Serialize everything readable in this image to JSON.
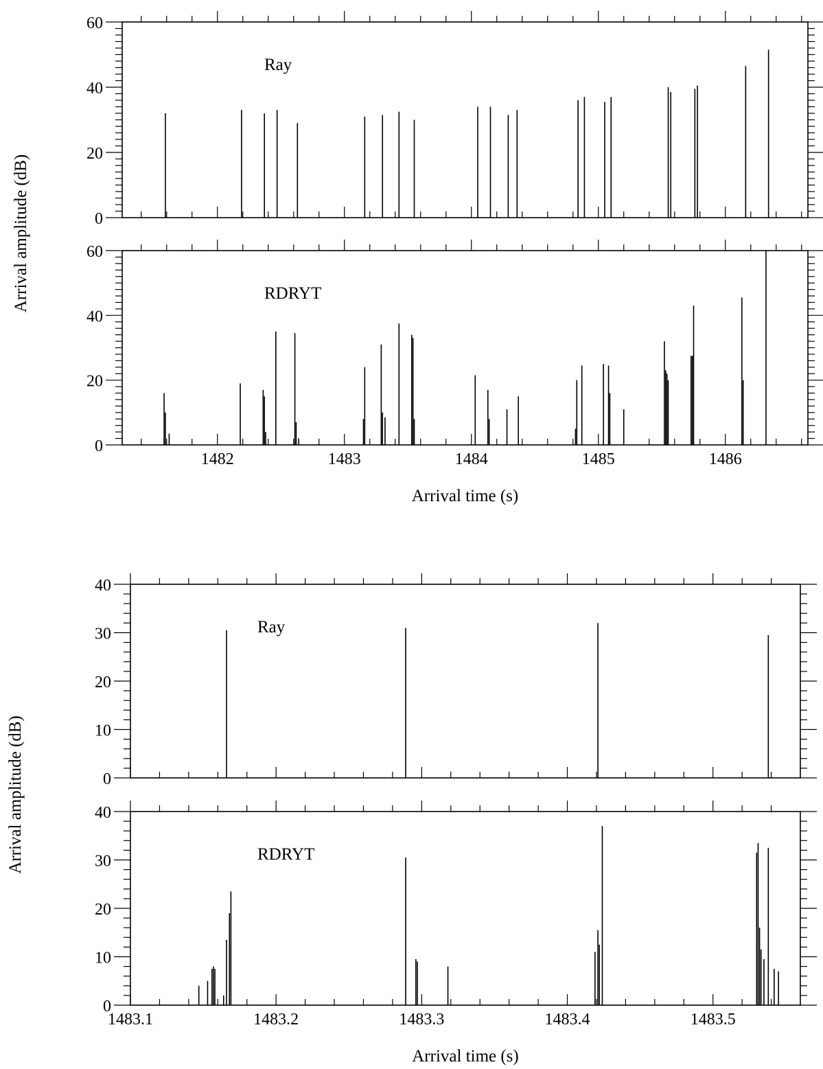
{
  "chart_data": [
    {
      "type": "bar",
      "ylabel": "Arrival amplitude (dB)",
      "xlabel": "Arrival time (s)",
      "xlim": [
        1481.25,
        1486.65
      ],
      "ylim": [
        0,
        60
      ],
      "xticks": [
        "1482",
        "1483",
        "1484",
        "1485",
        "1486"
      ],
      "yticks": [
        "0",
        "20",
        "40",
        "60"
      ],
      "panels": [
        {
          "name": "Ray",
          "arrivals": [
            [
              1481.59,
              32
            ],
            [
              1482.19,
              33
            ],
            [
              1482.37,
              32
            ],
            [
              1482.47,
              33
            ],
            [
              1482.63,
              29
            ],
            [
              1483.16,
              31
            ],
            [
              1483.3,
              31.5
            ],
            [
              1483.43,
              32.5
            ],
            [
              1483.55,
              30
            ],
            [
              1484.05,
              34
            ],
            [
              1484.15,
              34
            ],
            [
              1484.29,
              31.5
            ],
            [
              1484.36,
              33
            ],
            [
              1484.84,
              36
            ],
            [
              1484.89,
              37
            ],
            [
              1485.05,
              35.5
            ],
            [
              1485.1,
              37
            ],
            [
              1485.55,
              40
            ],
            [
              1485.57,
              38.5
            ],
            [
              1485.76,
              39.5
            ],
            [
              1485.78,
              40.5
            ],
            [
              1486.16,
              46.5
            ],
            [
              1486.34,
              51.5
            ]
          ]
        },
        {
          "name": "RDRYT",
          "arrivals": [
            [
              1481.58,
              16
            ],
            [
              1481.59,
              10
            ],
            [
              1481.62,
              3.5
            ],
            [
              1482.18,
              19
            ],
            [
              1482.36,
              17
            ],
            [
              1482.37,
              15
            ],
            [
              1482.38,
              4
            ],
            [
              1482.46,
              35
            ],
            [
              1482.61,
              34.5
            ],
            [
              1482.62,
              7
            ],
            [
              1482.64,
              2
            ],
            [
              1483.15,
              8
            ],
            [
              1483.16,
              24
            ],
            [
              1483.29,
              31
            ],
            [
              1483.3,
              10
            ],
            [
              1483.32,
              8.5
            ],
            [
              1483.43,
              37.5
            ],
            [
              1483.53,
              34
            ],
            [
              1483.54,
              33
            ],
            [
              1483.55,
              8
            ],
            [
              1484.03,
              21.5
            ],
            [
              1484.13,
              17
            ],
            [
              1484.14,
              8
            ],
            [
              1484.28,
              11
            ],
            [
              1484.37,
              15
            ],
            [
              1484.82,
              5
            ],
            [
              1484.83,
              20
            ],
            [
              1484.87,
              24.5
            ],
            [
              1485.04,
              25
            ],
            [
              1485.08,
              24.5
            ],
            [
              1485.09,
              16
            ],
            [
              1485.2,
              11
            ],
            [
              1485.52,
              32
            ],
            [
              1485.53,
              23
            ],
            [
              1485.54,
              22
            ],
            [
              1485.55,
              20
            ],
            [
              1485.73,
              27.5
            ],
            [
              1485.74,
              27.5
            ],
            [
              1485.75,
              43
            ],
            [
              1486.13,
              45.5
            ],
            [
              1486.14,
              20
            ],
            [
              1486.32,
              61
            ]
          ]
        }
      ]
    },
    {
      "type": "bar",
      "ylabel": "Arrival amplitude (dB)",
      "xlabel": "Arrival time (s)",
      "xlim": [
        1483.1,
        1483.56
      ],
      "ylim": [
        0,
        40
      ],
      "xticks": [
        "1483.1",
        "1483.2",
        "1483.3",
        "1483.4",
        "1483.5"
      ],
      "yticks": [
        "0",
        "10",
        "20",
        "30",
        "40"
      ],
      "panels": [
        {
          "name": "Ray",
          "arrivals": [
            [
              1483.166,
              30.5
            ],
            [
              1483.289,
              31
            ],
            [
              1483.421,
              32
            ],
            [
              1483.538,
              29.5
            ]
          ]
        },
        {
          "name": "RDRYT",
          "arrivals": [
            [
              1483.147,
              4
            ],
            [
              1483.153,
              5
            ],
            [
              1483.156,
              7.5
            ],
            [
              1483.157,
              8
            ],
            [
              1483.158,
              7.5
            ],
            [
              1483.164,
              2
            ],
            [
              1483.166,
              13.5
            ],
            [
              1483.168,
              19
            ],
            [
              1483.169,
              23.5
            ],
            [
              1483.289,
              30.5
            ],
            [
              1483.296,
              9.5
            ],
            [
              1483.297,
              9
            ],
            [
              1483.318,
              8
            ],
            [
              1483.419,
              11
            ],
            [
              1483.421,
              15.5
            ],
            [
              1483.422,
              12.5
            ],
            [
              1483.424,
              37
            ],
            [
              1483.53,
              31.5
            ],
            [
              1483.531,
              33.5
            ],
            [
              1483.532,
              16
            ],
            [
              1483.533,
              11.5
            ],
            [
              1483.535,
              9.5
            ],
            [
              1483.538,
              32.5
            ],
            [
              1483.542,
              7.5
            ],
            [
              1483.545,
              7
            ]
          ]
        }
      ]
    }
  ]
}
